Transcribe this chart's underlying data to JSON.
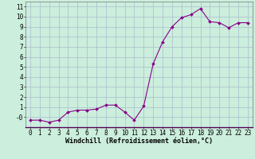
{
  "x": [
    0,
    1,
    2,
    3,
    4,
    5,
    6,
    7,
    8,
    9,
    10,
    11,
    12,
    13,
    14,
    15,
    16,
    17,
    18,
    19,
    20,
    21,
    22,
    23
  ],
  "y": [
    -0.3,
    -0.3,
    -0.5,
    -0.3,
    0.5,
    0.7,
    0.7,
    0.8,
    1.2,
    1.2,
    0.5,
    -0.3,
    1.1,
    5.3,
    7.5,
    9.0,
    9.9,
    10.2,
    10.8,
    9.5,
    9.4,
    8.9,
    9.4,
    9.4
  ],
  "line_color": "#880088",
  "marker": "D",
  "marker_size": 2.0,
  "bg_color": "#cceedd",
  "grid_color": "#aabbcc",
  "xlabel": "Windchill (Refroidissement éolien,°C)",
  "xlim": [
    -0.5,
    23.5
  ],
  "ylim": [
    -1.0,
    11.5
  ],
  "xtick_labels": [
    "0",
    "1",
    "2",
    "3",
    "4",
    "5",
    "6",
    "7",
    "8",
    "9",
    "10",
    "11",
    "12",
    "13",
    "14",
    "15",
    "16",
    "17",
    "18",
    "19",
    "20",
    "21",
    "22",
    "23"
  ],
  "ytick_labels": [
    "-0",
    "1",
    "2",
    "3",
    "4",
    "5",
    "6",
    "7",
    "8",
    "9",
    "10",
    "11"
  ],
  "ytick_vals": [
    0,
    1,
    2,
    3,
    4,
    5,
    6,
    7,
    8,
    9,
    10,
    11
  ],
  "tick_label_size": 5.5,
  "xlabel_size": 6.0
}
